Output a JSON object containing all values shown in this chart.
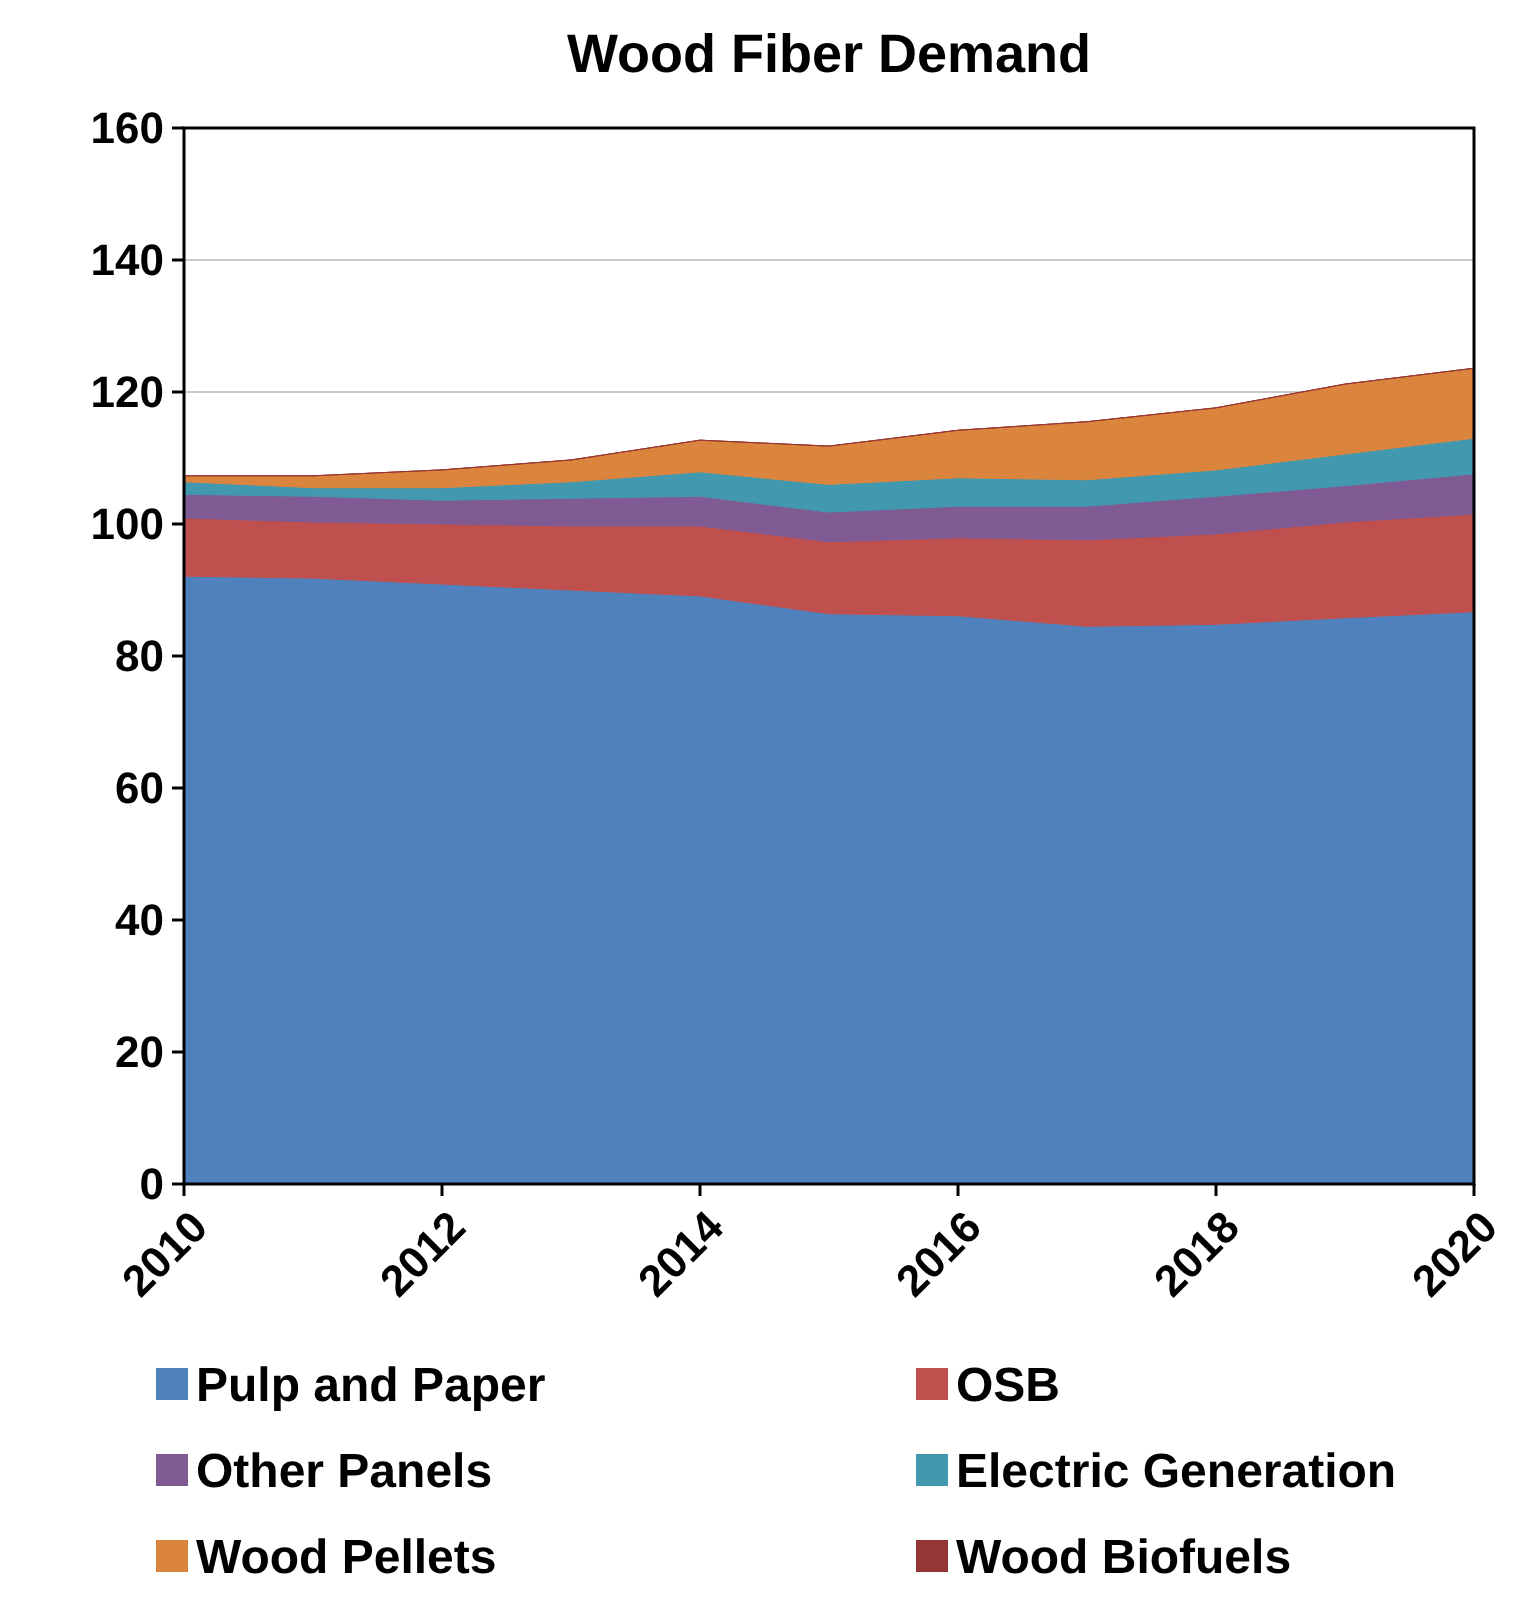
{
  "chart_data": {
    "type": "area",
    "stacked": true,
    "title": "Wood Fiber Demand",
    "x": [
      2010,
      2011,
      2012,
      2013,
      2014,
      2015,
      2016,
      2017,
      2018,
      2019,
      2020
    ],
    "xlim": [
      2010,
      2020
    ],
    "xticks": [
      2010,
      2012,
      2014,
      2016,
      2018,
      2020
    ],
    "ylim": [
      0,
      160
    ],
    "yticks": [
      0,
      20,
      40,
      60,
      80,
      100,
      120,
      140,
      160
    ],
    "grid": "y",
    "legend": "bottom",
    "series": [
      {
        "name": "Pulp and Paper",
        "color": "#4f81bd",
        "values": [
          92.1,
          91.8,
          90.9,
          90.0,
          89.1,
          86.4,
          86.1,
          84.5,
          84.8,
          85.8,
          86.7
        ]
      },
      {
        "name": "OSB",
        "color": "#c0504d",
        "values": [
          8.8,
          8.5,
          9.1,
          9.7,
          10.6,
          10.9,
          11.8,
          13.1,
          13.7,
          14.5,
          14.8
        ]
      },
      {
        "name": "Other Panels",
        "color": "#7f5a93",
        "values": [
          3.6,
          3.9,
          3.6,
          4.2,
          4.5,
          4.5,
          4.8,
          5.1,
          5.7,
          5.5,
          6.1
        ]
      },
      {
        "name": "Electric Generation",
        "color": "#4198af",
        "values": [
          1.9,
          1.3,
          1.9,
          2.5,
          3.7,
          4.2,
          4.3,
          4.0,
          4.0,
          4.8,
          5.4
        ]
      },
      {
        "name": "Wood Pellets",
        "color": "#db843d",
        "values": [
          0.9,
          1.8,
          2.7,
          3.3,
          4.8,
          5.8,
          7.2,
          8.8,
          9.4,
          10.6,
          10.6
        ]
      },
      {
        "name": "Wood Biofuels",
        "color": "#953735",
        "values": [
          null,
          null,
          null,
          null,
          null,
          null,
          null,
          null,
          null,
          null,
          null
        ]
      }
    ]
  }
}
